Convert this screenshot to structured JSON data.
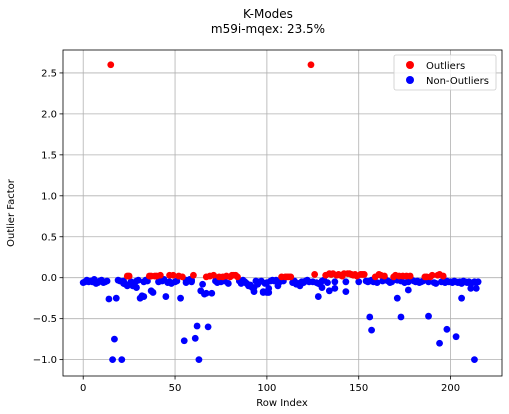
{
  "chart_data": {
    "type": "scatter",
    "title": "K-Modes",
    "subtitle": "m59i-mqex: 23.5%",
    "xlabel": "Row Index",
    "ylabel": "Outlier Factor",
    "xlim": [
      -11,
      228
    ],
    "ylim": [
      -1.2,
      2.78
    ],
    "xticks": [
      0,
      50,
      100,
      150,
      200
    ],
    "yticks": [
      -1.0,
      -0.5,
      0.0,
      0.5,
      1.0,
      1.5,
      2.0,
      2.5
    ],
    "ytick_labels": [
      "−1.0",
      "−0.5",
      "0.0",
      "0.5",
      "1.0",
      "1.5",
      "2.0",
      "2.5"
    ],
    "grid": true,
    "legend_position": "top-right",
    "colors": {
      "outliers": "#ff0000",
      "non_outliers": "#0000ff"
    },
    "series": [
      {
        "name": "Outliers",
        "x": [
          15,
          24,
          25,
          36,
          37,
          39,
          40,
          42,
          47,
          49,
          52,
          54,
          60,
          67,
          69,
          71,
          74,
          76,
          78,
          80,
          81,
          82,
          83,
          84,
          108,
          110,
          111,
          112,
          113,
          124,
          126,
          132,
          134,
          135,
          136,
          138,
          139,
          140,
          141,
          142,
          144,
          145,
          146,
          147,
          148,
          149,
          151,
          152,
          153,
          159,
          161,
          162,
          164,
          169,
          170,
          172,
          174,
          176,
          178,
          186,
          187,
          189,
          190,
          193,
          194,
          196
        ],
        "y": [
          2.6,
          0.02,
          0.02,
          0.02,
          0.02,
          0.02,
          0.02,
          0.03,
          0.03,
          0.03,
          0.02,
          0.01,
          0.03,
          0.01,
          0.02,
          0.03,
          0.01,
          0.01,
          0.02,
          0.01,
          0.03,
          0.03,
          0.03,
          0.01,
          0.01,
          0.01,
          0.01,
          0.01,
          0.01,
          2.6,
          0.04,
          0.03,
          0.05,
          0.04,
          0.05,
          0.03,
          0.04,
          0.03,
          0.02,
          0.05,
          0.05,
          0.05,
          0.04,
          0.03,
          0.04,
          0.02,
          0.04,
          0.04,
          0.04,
          0.01,
          0.04,
          0.03,
          0.02,
          0.01,
          0.03,
          0.02,
          0.02,
          0.02,
          0.02,
          0.01,
          0.01,
          0.01,
          0.03,
          0.03,
          0.04,
          0.02
        ]
      },
      {
        "name": "Non-Outliers",
        "x": [
          0,
          1,
          2,
          3,
          4,
          5,
          6,
          7,
          8,
          9,
          10,
          11,
          12,
          13,
          14,
          16,
          17,
          18,
          19,
          20,
          21,
          22,
          23,
          26,
          27,
          28,
          29,
          30,
          31,
          32,
          33,
          34,
          35,
          38,
          41,
          43,
          44,
          45,
          46,
          48,
          50,
          51,
          53,
          55,
          56,
          57,
          58,
          59,
          61,
          62,
          63,
          64,
          65,
          66,
          68,
          70,
          72,
          73,
          75,
          77,
          79,
          85,
          86,
          87,
          88,
          89,
          90,
          91,
          92,
          93,
          94,
          95,
          96,
          97,
          98,
          99,
          100,
          101,
          102,
          103,
          104,
          105,
          106,
          107,
          109,
          114,
          115,
          116,
          117,
          118,
          119,
          120,
          121,
          122,
          123,
          125,
          127,
          128,
          129,
          130,
          131,
          133,
          137,
          143,
          150,
          154,
          155,
          156,
          157,
          158,
          160,
          163,
          165,
          166,
          167,
          168,
          171,
          173,
          175,
          177,
          179,
          180,
          181,
          182,
          183,
          184,
          185,
          188,
          191,
          192,
          195,
          197,
          198,
          199,
          200,
          201,
          202,
          203,
          204,
          205,
          206,
          207,
          208,
          209,
          210,
          211,
          212,
          213,
          214,
          215
        ],
        "y": [
          -0.06,
          -0.05,
          -0.03,
          -0.05,
          -0.04,
          -0.05,
          -0.02,
          -0.07,
          -0.06,
          -0.04,
          -0.03,
          -0.06,
          -0.05,
          -0.04,
          -0.26,
          -1.0,
          -0.75,
          -0.25,
          -0.03,
          -0.04,
          -1.0,
          -0.04,
          -0.08,
          -0.05,
          -0.1,
          -0.06,
          -0.04,
          -0.03,
          -0.25,
          -0.22,
          -0.05,
          -0.03,
          -0.04,
          -0.18,
          -0.05,
          -0.04,
          -0.02,
          -0.23,
          -0.06,
          -0.07,
          -0.05,
          -0.04,
          -0.25,
          -0.77,
          -0.03,
          -0.04,
          -0.02,
          -0.03,
          -0.74,
          -0.59,
          -1.0,
          -0.16,
          -0.08,
          -0.2,
          -0.6,
          -0.19,
          -0.04,
          -0.06,
          -0.05,
          -0.04,
          -0.07,
          -0.04,
          -0.06,
          -0.03,
          -0.05,
          -0.07,
          -0.1,
          -0.09,
          -0.12,
          -0.17,
          -0.04,
          -0.08,
          -0.05,
          -0.04,
          -0.18,
          -0.07,
          -0.06,
          -0.18,
          -0.04,
          -0.03,
          -0.04,
          -0.03,
          -0.1,
          -0.05,
          -0.04,
          -0.06,
          -0.04,
          -0.08,
          -0.07,
          -0.1,
          -0.05,
          -0.06,
          -0.04,
          -0.03,
          -0.05,
          -0.05,
          -0.06,
          -0.07,
          -0.08,
          -0.04,
          -0.03,
          -0.06,
          -0.05,
          -0.05,
          -0.05,
          -0.04,
          -0.05,
          -0.04,
          -0.03,
          -0.05,
          -0.06,
          -0.04,
          -0.03,
          -0.04,
          -0.06,
          -0.05,
          -0.03,
          -0.04,
          -0.06,
          -0.05,
          -0.03,
          -0.04,
          -0.05,
          -0.04,
          -0.06,
          -0.05,
          -0.04,
          -0.05,
          -0.06,
          -0.07,
          -0.05,
          -0.06,
          -0.04,
          -0.05,
          -0.05,
          -0.06,
          -0.04,
          -0.05,
          -0.06,
          -0.05,
          -0.07,
          -0.04,
          -0.05,
          -0.06,
          -0.05,
          -0.07,
          -0.06,
          -0.05,
          -0.06,
          -0.05
        ]
      }
    ],
    "extra_non_outlier_points": {
      "x": [
        22,
        24,
        29,
        33,
        37,
        43,
        47,
        56,
        59,
        67,
        86,
        93,
        95,
        98,
        100,
        101,
        118,
        128,
        130,
        134,
        137,
        143,
        156,
        157,
        171,
        173,
        177,
        188,
        194,
        198,
        203,
        206,
        211,
        213,
        214
      ],
      "y": [
        -0.07,
        -0.1,
        -0.12,
        -0.23,
        -0.16,
        -0.03,
        -0.05,
        -0.06,
        -0.05,
        -0.19,
        -0.07,
        -0.12,
        -0.05,
        -0.17,
        -0.18,
        -0.13,
        -0.09,
        -0.23,
        -0.12,
        -0.16,
        -0.13,
        -0.17,
        -0.48,
        -0.64,
        -0.25,
        -0.48,
        -0.15,
        -0.47,
        -0.8,
        -0.63,
        -0.72,
        -0.25,
        -0.13,
        -1.0,
        -0.13
      ]
    }
  }
}
